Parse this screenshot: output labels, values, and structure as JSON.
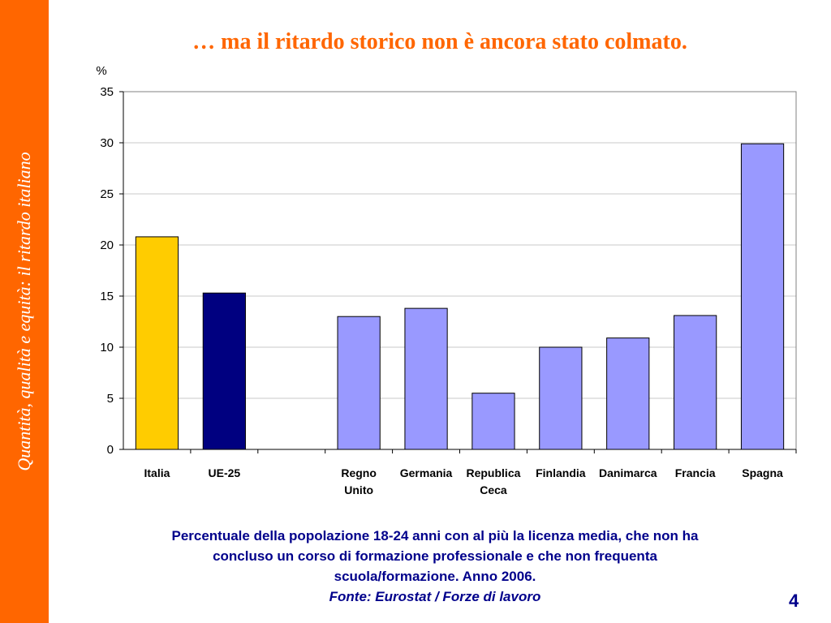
{
  "sidebar": {
    "text": "Quantità, qualità e equità: il ritardo italiano"
  },
  "title": "… ma il ritardo storico non è ancora stato colmato.",
  "caption": {
    "line1": "Percentuale della popolazione 18-24 anni con al più la licenza media, che non ha",
    "line2": "concluso un corso di formazione professionale e che non frequenta",
    "line3": "scuola/formazione. Anno 2006.",
    "source": "Fonte: Eurostat / Forze di lavoro"
  },
  "page_number": "4",
  "chart_data": {
    "type": "bar",
    "ylabel": "%",
    "ylim": [
      0,
      35
    ],
    "yticks": [
      0,
      5,
      10,
      15,
      20,
      25,
      30,
      35
    ],
    "grid": true,
    "categories": [
      [
        "Italia"
      ],
      [
        "UE-25"
      ],
      [
        ""
      ],
      [
        "Regno",
        "Unito"
      ],
      [
        "Germania"
      ],
      [
        "Republica",
        "Ceca"
      ],
      [
        "Finlandia"
      ],
      [
        "Danimarca"
      ],
      [
        "Francia"
      ],
      [
        "Spagna"
      ]
    ],
    "values": [
      20.8,
      15.3,
      null,
      13.0,
      13.8,
      5.5,
      10.0,
      10.9,
      13.1,
      29.9
    ],
    "colors": [
      "#ffcc00",
      "#000080",
      "#9999ff",
      "#9999ff",
      "#9999ff",
      "#9999ff",
      "#9999ff",
      "#9999ff",
      "#9999ff",
      "#9999ff"
    ]
  }
}
